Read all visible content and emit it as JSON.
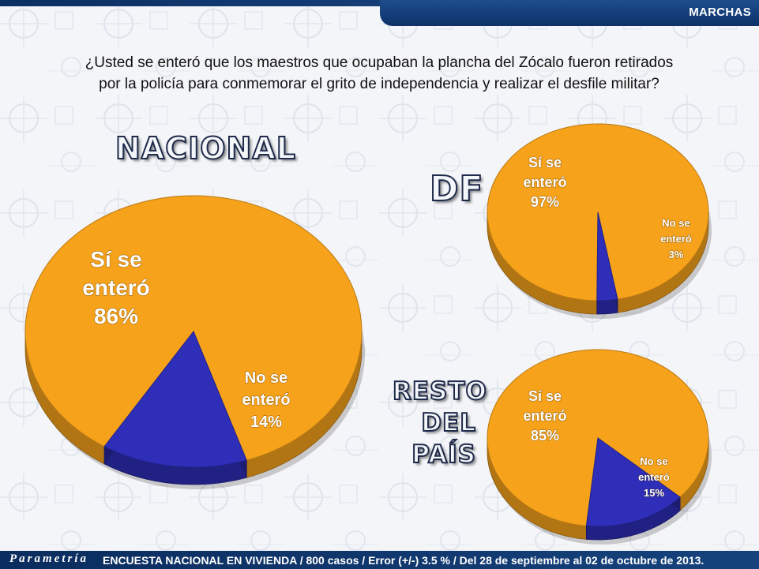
{
  "header": {
    "section_title": "MARCHAS"
  },
  "question": {
    "line1": "¿Usted se enteró que los maestros que ocupaban la plancha del Zócalo fueron retirados",
    "line2": "por la policía para conmemorar el grito de independencia y realizar el desfile militar?"
  },
  "colors": {
    "yes": "#f7a21b",
    "no": "#2e2eb8",
    "header_blue": "#0d3168"
  },
  "chart_data": [
    {
      "type": "pie",
      "title": "NACIONAL",
      "categories": [
        "Sí se enteró",
        "No se enteró"
      ],
      "values": [
        86,
        14
      ],
      "labels": [
        {
          "lines": [
            "Sí se",
            "enteró",
            "86%"
          ]
        },
        {
          "lines": [
            "No se",
            "enteró",
            "14%"
          ]
        }
      ]
    },
    {
      "type": "pie",
      "title": "DF",
      "categories": [
        "Sí se enteró",
        "No se enteró"
      ],
      "values": [
        97,
        3
      ],
      "labels": [
        {
          "lines": [
            "Sí se",
            "enteró",
            "97%"
          ]
        },
        {
          "lines": [
            "No se",
            "enteró",
            "3%"
          ]
        }
      ]
    },
    {
      "type": "pie",
      "title_lines": [
        "RESTO",
        "DEL",
        "PAÍS"
      ],
      "categories": [
        "Sí se enteró",
        "No se enteró"
      ],
      "values": [
        85,
        15
      ],
      "labels": [
        {
          "lines": [
            "Sí se",
            "enteró",
            "85%"
          ]
        },
        {
          "lines": [
            "No se",
            "enteró",
            "15%"
          ]
        }
      ]
    }
  ],
  "footer": {
    "logo": "Parametría",
    "text": "ENCUESTA NACIONAL EN VIVIENDA / 800 casos / Error (+/-) 3.5 % / Del 28 de septiembre al 02 de octubre de 2013."
  }
}
